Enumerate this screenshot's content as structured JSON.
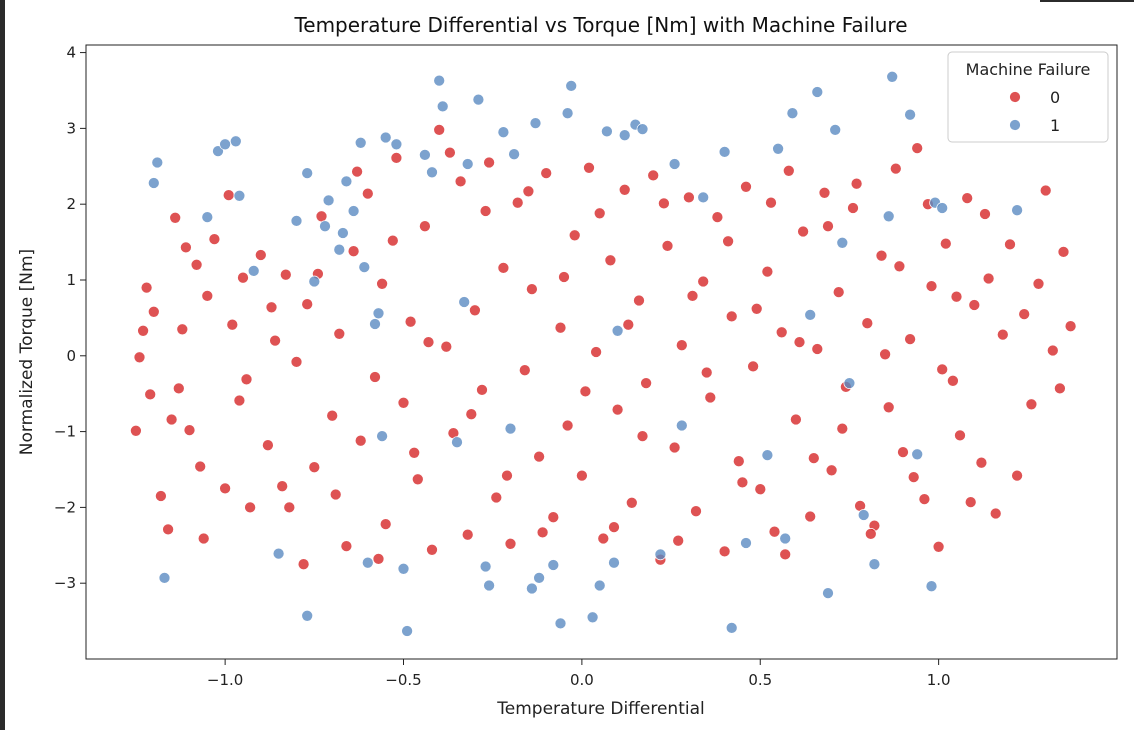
{
  "chart_data": {
    "type": "scatter",
    "title": "Temperature Differential vs Torque [Nm] with Machine Failure",
    "xlabel": "Temperature Differential",
    "ylabel": "Normalized Torque [Nm]",
    "xlim": [
      -1.39,
      1.5
    ],
    "ylim": [
      -4.0,
      4.1
    ],
    "xticks": [
      -1.0,
      -0.5,
      0.0,
      0.5,
      1.0
    ],
    "xtick_labels": [
      "−1.0",
      "−0.5",
      "0.0",
      "0.5",
      "1.0"
    ],
    "yticks": [
      -3,
      -2,
      -1,
      0,
      1,
      2,
      3,
      4
    ],
    "ytick_labels": [
      "−3",
      "−2",
      "−1",
      "0",
      "1",
      "2",
      "3",
      "4"
    ],
    "grid": false,
    "legend": {
      "title": "Machine Failure",
      "placement": "top-right",
      "entries": [
        {
          "label": "0",
          "color": "#d62728"
        },
        {
          "label": "1",
          "color": "#5b8bc2"
        }
      ]
    },
    "series": [
      {
        "name": "0",
        "color": "#d62728",
        "points": [
          [
            -1.24,
            -0.02
          ],
          [
            -1.25,
            -0.99
          ],
          [
            -1.23,
            0.33
          ],
          [
            -1.22,
            0.9
          ],
          [
            -1.21,
            -0.51
          ],
          [
            -1.18,
            -1.85
          ],
          [
            -1.16,
            -2.29
          ],
          [
            -1.14,
            1.82
          ],
          [
            -1.13,
            -0.43
          ],
          [
            -1.12,
            0.35
          ],
          [
            -1.1,
            -0.98
          ],
          [
            -1.08,
            1.2
          ],
          [
            -1.06,
            -2.41
          ],
          [
            -1.05,
            0.79
          ],
          [
            -1.03,
            1.54
          ],
          [
            -1.0,
            -1.75
          ],
          [
            -0.98,
            0.41
          ],
          [
            -0.96,
            -0.59
          ],
          [
            -0.95,
            1.03
          ],
          [
            -0.93,
            -2.0
          ],
          [
            -0.9,
            1.33
          ],
          [
            -0.88,
            -1.18
          ],
          [
            -0.86,
            0.2
          ],
          [
            -0.84,
            -1.72
          ],
          [
            -0.83,
            1.07
          ],
          [
            -0.8,
            -0.08
          ],
          [
            -0.78,
            -2.75
          ],
          [
            -0.77,
            0.68
          ],
          [
            -0.75,
            -1.47
          ],
          [
            -0.73,
            1.84
          ],
          [
            -0.7,
            -0.79
          ],
          [
            -0.68,
            0.29
          ],
          [
            -0.66,
            -2.51
          ],
          [
            -0.64,
            1.38
          ],
          [
            -0.62,
            -1.12
          ],
          [
            -0.6,
            2.14
          ],
          [
            -0.58,
            -0.28
          ],
          [
            -0.56,
            0.95
          ],
          [
            -0.55,
            -2.22
          ],
          [
            -0.52,
            2.61
          ],
          [
            -0.5,
            -0.62
          ],
          [
            -0.48,
            0.45
          ],
          [
            -0.46,
            -1.63
          ],
          [
            -0.44,
            1.71
          ],
          [
            -0.42,
            -2.56
          ],
          [
            -0.4,
            2.98
          ],
          [
            -0.38,
            0.12
          ],
          [
            -0.36,
            -1.02
          ],
          [
            -0.34,
            2.3
          ],
          [
            -0.32,
            -2.36
          ],
          [
            -0.3,
            0.6
          ],
          [
            -0.28,
            -0.45
          ],
          [
            -0.26,
            2.55
          ],
          [
            -0.24,
            -1.87
          ],
          [
            -0.22,
            1.16
          ],
          [
            -0.2,
            -2.48
          ],
          [
            -0.18,
            2.02
          ],
          [
            -0.16,
            -0.19
          ],
          [
            -0.14,
            0.88
          ],
          [
            -0.12,
            -1.33
          ],
          [
            -0.1,
            2.41
          ],
          [
            -0.08,
            -2.13
          ],
          [
            -0.06,
            0.37
          ],
          [
            -0.04,
            -0.92
          ],
          [
            -0.02,
            1.59
          ],
          [
            0.0,
            -1.58
          ],
          [
            0.02,
            2.48
          ],
          [
            0.04,
            0.05
          ],
          [
            0.06,
            -2.41
          ],
          [
            0.08,
            1.26
          ],
          [
            0.1,
            -0.71
          ],
          [
            0.12,
            2.19
          ],
          [
            0.14,
            -1.94
          ],
          [
            0.16,
            0.73
          ],
          [
            0.18,
            -0.36
          ],
          [
            0.2,
            2.38
          ],
          [
            0.22,
            -2.69
          ],
          [
            0.24,
            1.45
          ],
          [
            0.26,
            -1.21
          ],
          [
            0.28,
            0.14
          ],
          [
            0.3,
            2.09
          ],
          [
            0.32,
            -2.05
          ],
          [
            0.34,
            0.98
          ],
          [
            0.36,
            -0.55
          ],
          [
            0.38,
            1.83
          ],
          [
            0.4,
            -2.58
          ],
          [
            0.42,
            0.52
          ],
          [
            0.44,
            -1.39
          ],
          [
            0.46,
            2.23
          ],
          [
            0.48,
            -0.14
          ],
          [
            0.5,
            -1.76
          ],
          [
            0.52,
            1.11
          ],
          [
            0.54,
            -2.32
          ],
          [
            0.56,
            0.31
          ],
          [
            0.58,
            2.44
          ],
          [
            0.6,
            -0.84
          ],
          [
            0.62,
            1.64
          ],
          [
            0.64,
            -2.12
          ],
          [
            0.66,
            0.09
          ],
          [
            0.68,
            2.15
          ],
          [
            0.7,
            -1.51
          ],
          [
            0.72,
            0.84
          ],
          [
            0.74,
            -0.41
          ],
          [
            0.76,
            1.95
          ],
          [
            0.78,
            -1.98
          ],
          [
            0.8,
            0.43
          ],
          [
            0.82,
            -2.24
          ],
          [
            0.84,
            1.32
          ],
          [
            0.86,
            -0.68
          ],
          [
            0.88,
            2.47
          ],
          [
            0.9,
            -1.27
          ],
          [
            0.92,
            0.22
          ],
          [
            0.94,
            2.74
          ],
          [
            0.96,
            -1.89
          ],
          [
            0.98,
            0.92
          ],
          [
            1.0,
            -2.52
          ],
          [
            1.02,
            1.48
          ],
          [
            1.04,
            -0.33
          ],
          [
            1.06,
            -1.05
          ],
          [
            1.08,
            2.08
          ],
          [
            1.1,
            0.67
          ],
          [
            1.12,
            -1.41
          ],
          [
            1.14,
            1.02
          ],
          [
            1.16,
            -2.08
          ],
          [
            1.18,
            0.28
          ],
          [
            1.2,
            1.47
          ],
          [
            1.22,
            -1.58
          ],
          [
            1.24,
            0.55
          ],
          [
            1.26,
            -0.64
          ],
          [
            1.3,
            2.18
          ],
          [
            1.32,
            0.07
          ],
          [
            1.34,
            -0.43
          ],
          [
            1.35,
            1.37
          ],
          [
            1.37,
            0.39
          ],
          [
            1.28,
            0.95
          ],
          [
            -1.2,
            0.58
          ],
          [
            -1.15,
            -0.84
          ],
          [
            -1.11,
            1.43
          ],
          [
            -1.07,
            -1.46
          ],
          [
            -0.99,
            2.12
          ],
          [
            -0.94,
            -0.31
          ],
          [
            -0.87,
            0.64
          ],
          [
            -0.82,
            -2.0
          ],
          [
            -0.74,
            1.08
          ],
          [
            -0.69,
            -1.83
          ],
          [
            -0.63,
            2.43
          ],
          [
            -0.57,
            -2.68
          ],
          [
            -0.53,
            1.52
          ],
          [
            -0.47,
            -1.28
          ],
          [
            -0.43,
            0.18
          ],
          [
            -0.37,
            2.68
          ],
          [
            -0.31,
            -0.77
          ],
          [
            -0.27,
            1.91
          ],
          [
            -0.21,
            -1.58
          ],
          [
            -0.15,
            2.17
          ],
          [
            -0.11,
            -2.33
          ],
          [
            -0.05,
            1.04
          ],
          [
            0.01,
            -0.47
          ],
          [
            0.05,
            1.88
          ],
          [
            0.09,
            -2.26
          ],
          [
            0.13,
            0.41
          ],
          [
            0.17,
            -1.06
          ],
          [
            0.23,
            2.01
          ],
          [
            0.27,
            -2.44
          ],
          [
            0.31,
            0.79
          ],
          [
            0.35,
            -0.22
          ],
          [
            0.41,
            1.51
          ],
          [
            0.45,
            -1.67
          ],
          [
            0.49,
            0.62
          ],
          [
            0.53,
            2.02
          ],
          [
            0.57,
            -2.62
          ],
          [
            0.61,
            0.18
          ],
          [
            0.65,
            -1.35
          ],
          [
            0.69,
            1.71
          ],
          [
            0.73,
            -0.96
          ],
          [
            0.77,
            2.27
          ],
          [
            0.81,
            -2.35
          ],
          [
            0.85,
            0.02
          ],
          [
            0.89,
            1.18
          ],
          [
            0.93,
            -1.6
          ],
          [
            0.97,
            2.0
          ],
          [
            1.01,
            -0.18
          ],
          [
            1.05,
            0.78
          ],
          [
            1.09,
            -1.93
          ],
          [
            1.13,
            1.87
          ]
        ]
      },
      {
        "name": "1",
        "color": "#5b8bc2",
        "points": [
          [
            -1.19,
            2.55
          ],
          [
            -1.2,
            2.28
          ],
          [
            -1.17,
            -2.93
          ],
          [
            -1.05,
            1.83
          ],
          [
            -1.02,
            2.7
          ],
          [
            -1.0,
            2.79
          ],
          [
            -0.97,
            2.83
          ],
          [
            -0.96,
            2.11
          ],
          [
            -0.92,
            1.12
          ],
          [
            -0.85,
            -2.61
          ],
          [
            -0.8,
            1.78
          ],
          [
            -0.77,
            2.41
          ],
          [
            -0.77,
            -3.43
          ],
          [
            -0.72,
            1.71
          ],
          [
            -0.68,
            1.4
          ],
          [
            -0.66,
            2.3
          ],
          [
            -0.62,
            2.81
          ],
          [
            -0.6,
            -2.73
          ],
          [
            -0.57,
            0.56
          ],
          [
            -0.55,
            2.88
          ],
          [
            -0.52,
            2.79
          ],
          [
            -0.5,
            -2.81
          ],
          [
            -0.49,
            -3.63
          ],
          [
            -0.44,
            2.65
          ],
          [
            -0.42,
            2.42
          ],
          [
            -0.4,
            3.63
          ],
          [
            -0.39,
            3.29
          ],
          [
            -0.32,
            2.53
          ],
          [
            -0.29,
            3.38
          ],
          [
            -0.27,
            -2.78
          ],
          [
            -0.26,
            -3.03
          ],
          [
            -0.22,
            2.95
          ],
          [
            -0.19,
            2.66
          ],
          [
            -0.13,
            3.07
          ],
          [
            -0.14,
            -3.07
          ],
          [
            -0.12,
            -2.93
          ],
          [
            -0.08,
            -2.76
          ],
          [
            -0.06,
            -3.53
          ],
          [
            -0.04,
            3.2
          ],
          [
            -0.03,
            3.56
          ],
          [
            0.03,
            -3.45
          ],
          [
            0.05,
            -3.03
          ],
          [
            0.07,
            2.96
          ],
          [
            0.09,
            -2.73
          ],
          [
            0.12,
            2.91
          ],
          [
            0.15,
            3.05
          ],
          [
            0.17,
            2.99
          ],
          [
            0.22,
            -2.62
          ],
          [
            0.26,
            2.53
          ],
          [
            0.34,
            2.09
          ],
          [
            0.4,
            2.69
          ],
          [
            0.42,
            -3.59
          ],
          [
            0.46,
            -2.47
          ],
          [
            0.55,
            2.73
          ],
          [
            0.57,
            -2.41
          ],
          [
            0.59,
            3.2
          ],
          [
            0.66,
            3.48
          ],
          [
            0.69,
            -3.13
          ],
          [
            0.71,
            2.98
          ],
          [
            0.73,
            1.49
          ],
          [
            0.79,
            -2.1
          ],
          [
            0.82,
            -2.75
          ],
          [
            0.86,
            1.84
          ],
          [
            0.87,
            3.68
          ],
          [
            0.92,
            3.18
          ],
          [
            0.94,
            -1.3
          ],
          [
            0.98,
            -3.04
          ],
          [
            0.99,
            2.02
          ],
          [
            1.01,
            1.95
          ],
          [
            1.22,
            1.92
          ],
          [
            -0.67,
            1.62
          ],
          [
            -0.64,
            1.91
          ],
          [
            -0.61,
            1.17
          ],
          [
            -0.58,
            0.42
          ],
          [
            -0.71,
            2.05
          ],
          [
            -0.75,
            0.98
          ],
          [
            -0.56,
            -1.06
          ],
          [
            -0.35,
            -1.14
          ],
          [
            -0.2,
            -0.96
          ],
          [
            0.28,
            -0.92
          ],
          [
            0.52,
            -1.31
          ],
          [
            0.64,
            0.54
          ],
          [
            0.75,
            -0.36
          ],
          [
            -0.33,
            0.71
          ],
          [
            0.1,
            0.33
          ]
        ]
      }
    ]
  }
}
